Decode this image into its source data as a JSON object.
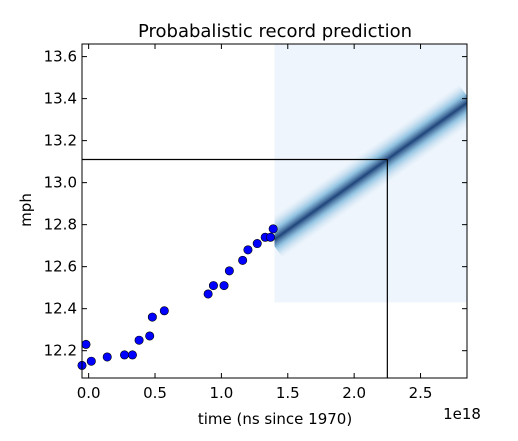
{
  "chart_data": {
    "type": "scatter",
    "title": "Probabalistic record prediction",
    "xlabel": "time (ns since 1970)",
    "ylabel": "mph",
    "x_offset_label": "1e18",
    "xlim": [
      -0.05,
      2.85
    ],
    "ylim": [
      12.07,
      13.66
    ],
    "x_unit_multiplier": 1e+18,
    "xticks": [
      0.0,
      0.5,
      1.0,
      1.5,
      2.0,
      2.5
    ],
    "xtick_labels": [
      "0.0",
      "0.5",
      "1.0",
      "1.5",
      "2.0",
      "2.5"
    ],
    "yticks": [
      12.2,
      12.4,
      12.6,
      12.8,
      13.0,
      13.2,
      13.4,
      13.6
    ],
    "ytick_labels": [
      "12.2",
      "12.4",
      "12.6",
      "12.8",
      "13.0",
      "13.2",
      "13.4",
      "13.6"
    ],
    "grid": false,
    "marker_color": "#0000ff",
    "points": [
      {
        "x": -0.05,
        "y": 12.13
      },
      {
        "x": -0.02,
        "y": 12.23
      },
      {
        "x": 0.02,
        "y": 12.15
      },
      {
        "x": 0.14,
        "y": 12.17
      },
      {
        "x": 0.27,
        "y": 12.18
      },
      {
        "x": 0.33,
        "y": 12.18
      },
      {
        "x": 0.38,
        "y": 12.25
      },
      {
        "x": 0.46,
        "y": 12.27
      },
      {
        "x": 0.48,
        "y": 12.36
      },
      {
        "x": 0.57,
        "y": 12.39
      },
      {
        "x": 0.9,
        "y": 12.47
      },
      {
        "x": 0.94,
        "y": 12.51
      },
      {
        "x": 1.02,
        "y": 12.51
      },
      {
        "x": 1.06,
        "y": 12.58
      },
      {
        "x": 1.16,
        "y": 12.63
      },
      {
        "x": 1.2,
        "y": 12.68
      },
      {
        "x": 1.27,
        "y": 12.71
      },
      {
        "x": 1.33,
        "y": 12.74
      },
      {
        "x": 1.37,
        "y": 12.74
      },
      {
        "x": 1.39,
        "y": 12.78
      }
    ],
    "prediction_heatmap": {
      "x_range": [
        1.4,
        2.85
      ],
      "y_range": [
        12.43,
        13.66
      ],
      "band_start": [
        1.4,
        12.73
      ],
      "band_end": [
        2.85,
        13.38
      ],
      "background_color": "#eef5fc",
      "band_color": "#08306b"
    },
    "reference_lines": {
      "y": 13.11,
      "x": 2.25
    }
  }
}
